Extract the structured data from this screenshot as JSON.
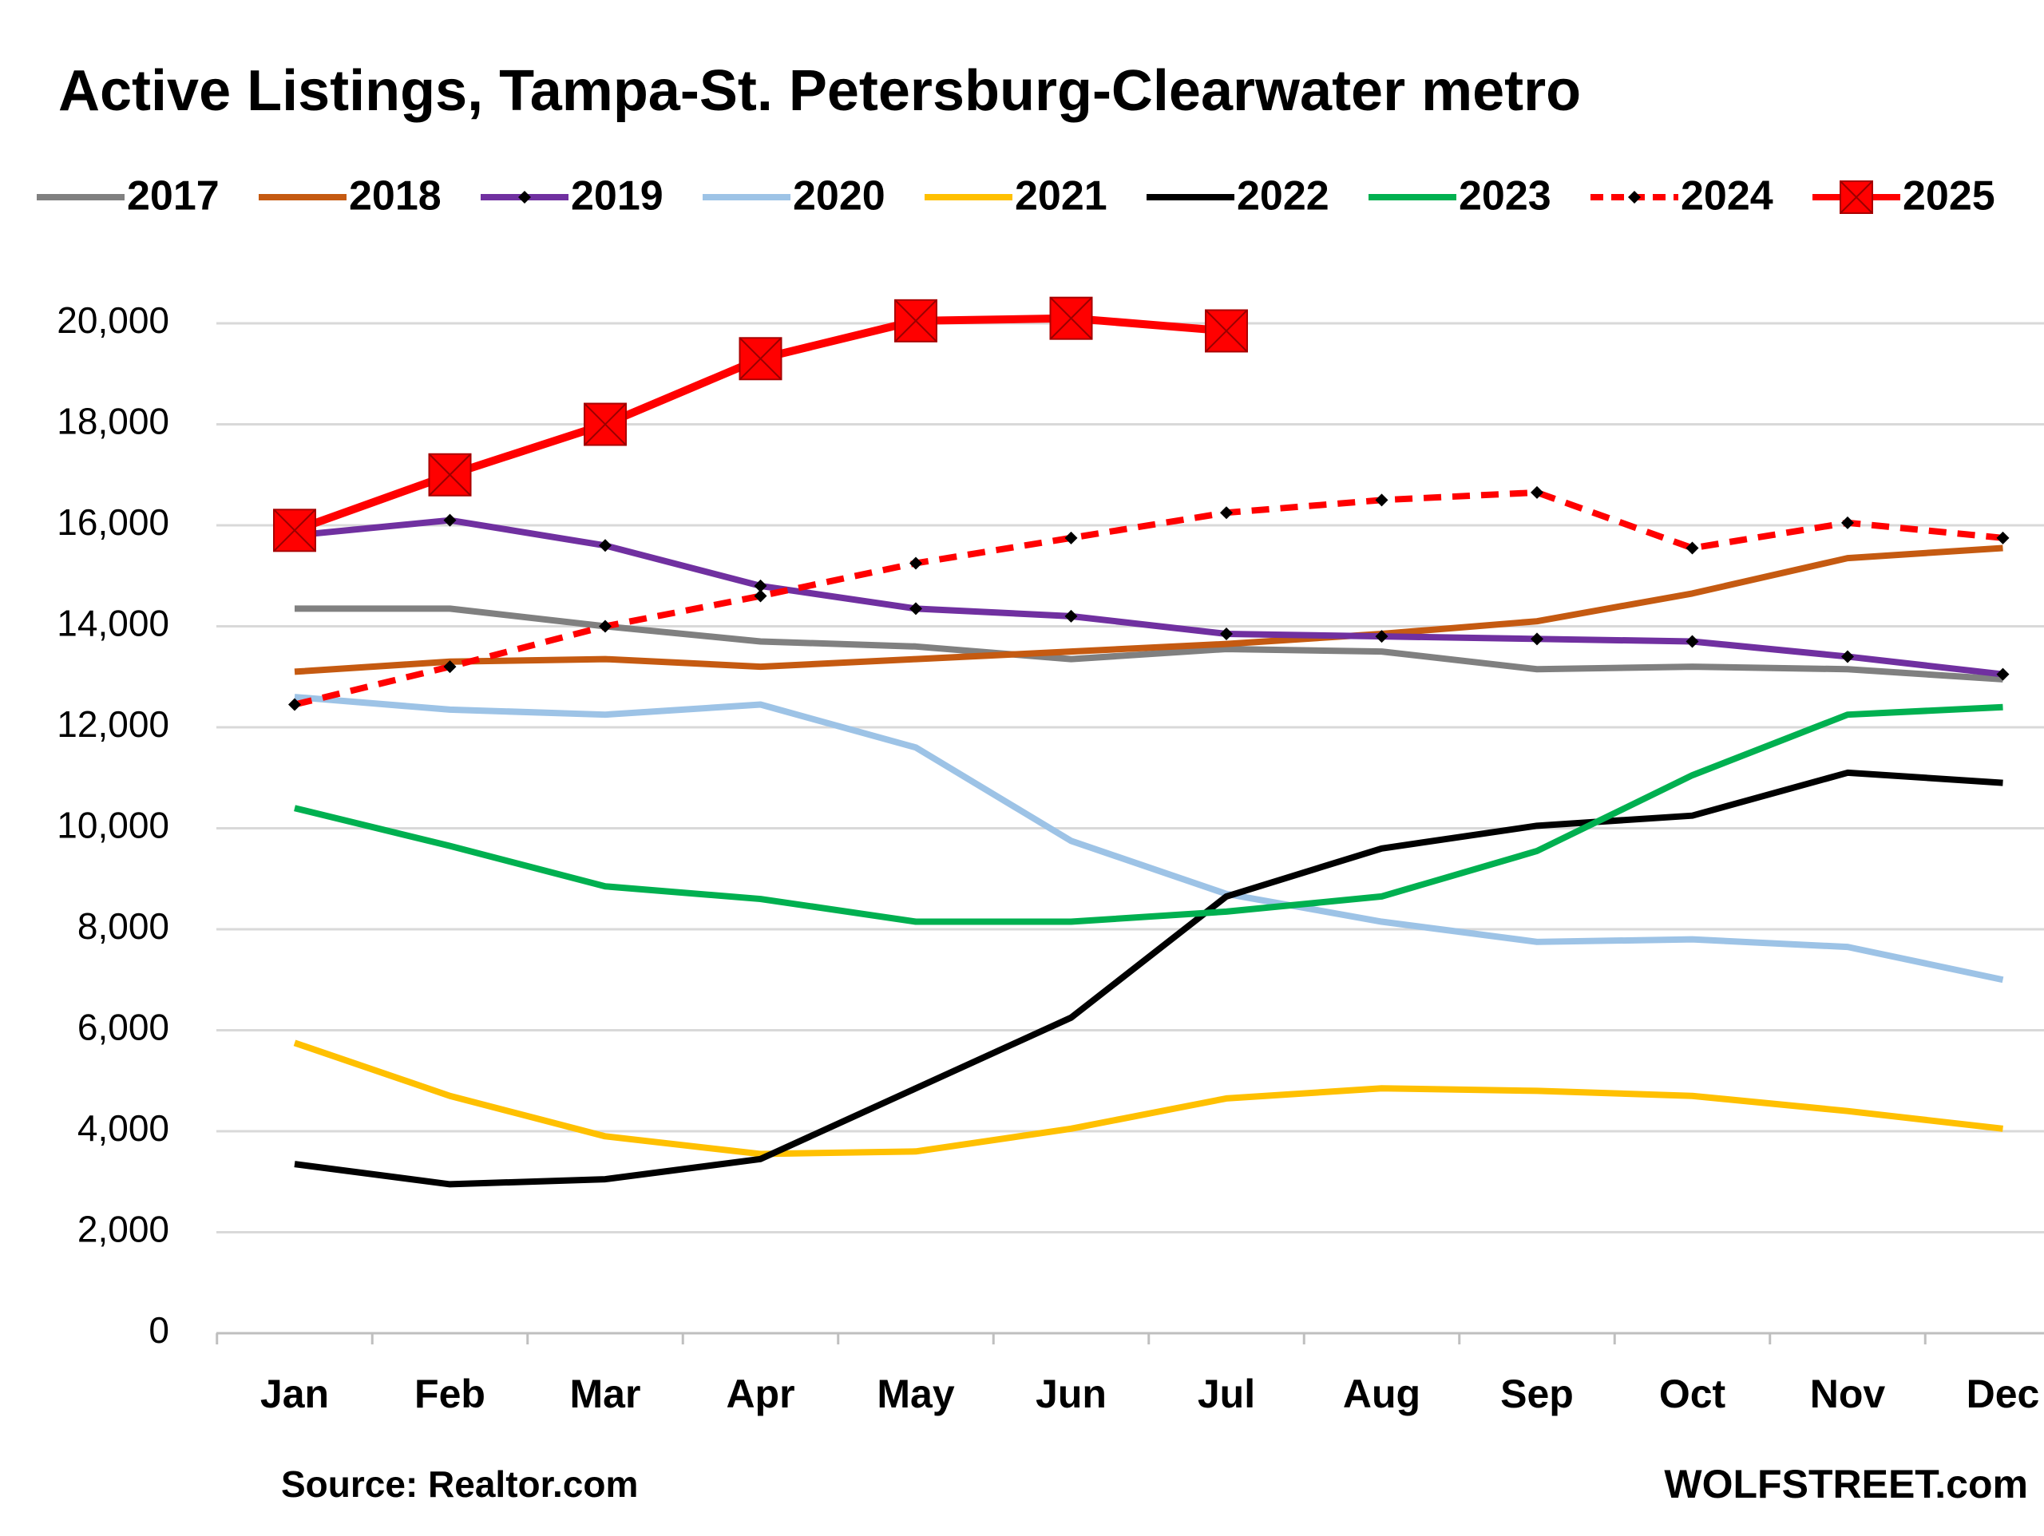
{
  "chart_data": {
    "type": "line",
    "title": "Active Listings, Tampa-St. Petersburg-Clearwater metro",
    "source": "Source: Realtor.com",
    "credit": "WOLFSTREET.com",
    "categories": [
      "Jan",
      "Feb",
      "Mar",
      "Apr",
      "May",
      "Jun",
      "Jul",
      "Aug",
      "Sep",
      "Oct",
      "Nov",
      "Dec"
    ],
    "ylim": [
      0,
      20000
    ],
    "yticks": [
      0,
      {
        "value": 2000,
        "label": "2,000"
      },
      {
        "value": 4000,
        "label": "4,000"
      },
      {
        "value": 6000,
        "label": "6,000"
      },
      {
        "value": 8000,
        "label": "8,000"
      },
      {
        "value": 10000,
        "label": "10,000"
      },
      {
        "value": 12000,
        "label": "12,000"
      },
      {
        "value": 14000,
        "label": "14,000"
      },
      {
        "value": 16000,
        "label": "16,000"
      },
      {
        "value": 18000,
        "label": "18,000"
      },
      {
        "value": 20000,
        "label": "20,000"
      }
    ],
    "grid": true,
    "legend": "top",
    "series": [
      {
        "name": "2017",
        "color": "#808080",
        "values": [
          14350,
          14350,
          14000,
          13700,
          13600,
          13350,
          13550,
          13500,
          13150,
          13200,
          13150,
          12950
        ]
      },
      {
        "name": "2018",
        "color": "#c55a11",
        "values": [
          13100,
          13300,
          13350,
          13200,
          13350,
          13500,
          13650,
          13850,
          14100,
          14650,
          15350,
          15550
        ]
      },
      {
        "name": "2019",
        "color": "#7030a0",
        "marker": "diamond",
        "values": [
          15800,
          16100,
          15600,
          14800,
          14350,
          14200,
          13850,
          13800,
          13750,
          13700,
          13400,
          13050
        ]
      },
      {
        "name": "2020",
        "color": "#9dc3e6",
        "values": [
          12600,
          12350,
          12250,
          12450,
          11600,
          9750,
          8700,
          8150,
          7750,
          7800,
          7650,
          7000
        ]
      },
      {
        "name": "2021",
        "color": "#ffc000",
        "values": [
          5750,
          4700,
          3900,
          3550,
          3600,
          4050,
          4650,
          4850,
          4800,
          4700,
          4400,
          4050
        ]
      },
      {
        "name": "2022",
        "color": "#000000",
        "values": [
          3350,
          2950,
          3050,
          3450,
          4850,
          6250,
          8650,
          9600,
          10050,
          10250,
          11100,
          10900
        ]
      },
      {
        "name": "2023",
        "color": "#00b050",
        "values": [
          10400,
          9650,
          8850,
          8600,
          8150,
          8150,
          8350,
          8650,
          9550,
          11050,
          12250,
          12400
        ]
      },
      {
        "name": "2024",
        "color": "#ff0000",
        "dash": true,
        "marker": "diamond",
        "values": [
          12450,
          13200,
          14000,
          14600,
          15250,
          15750,
          16250,
          16500,
          16650,
          15550,
          16050,
          15750
        ]
      },
      {
        "name": "2025",
        "color": "#ff0000",
        "marker": "square-x",
        "values": [
          15900,
          17000,
          18000,
          19300,
          20050,
          20100,
          19850,
          null,
          null,
          null,
          null,
          null
        ]
      }
    ]
  }
}
